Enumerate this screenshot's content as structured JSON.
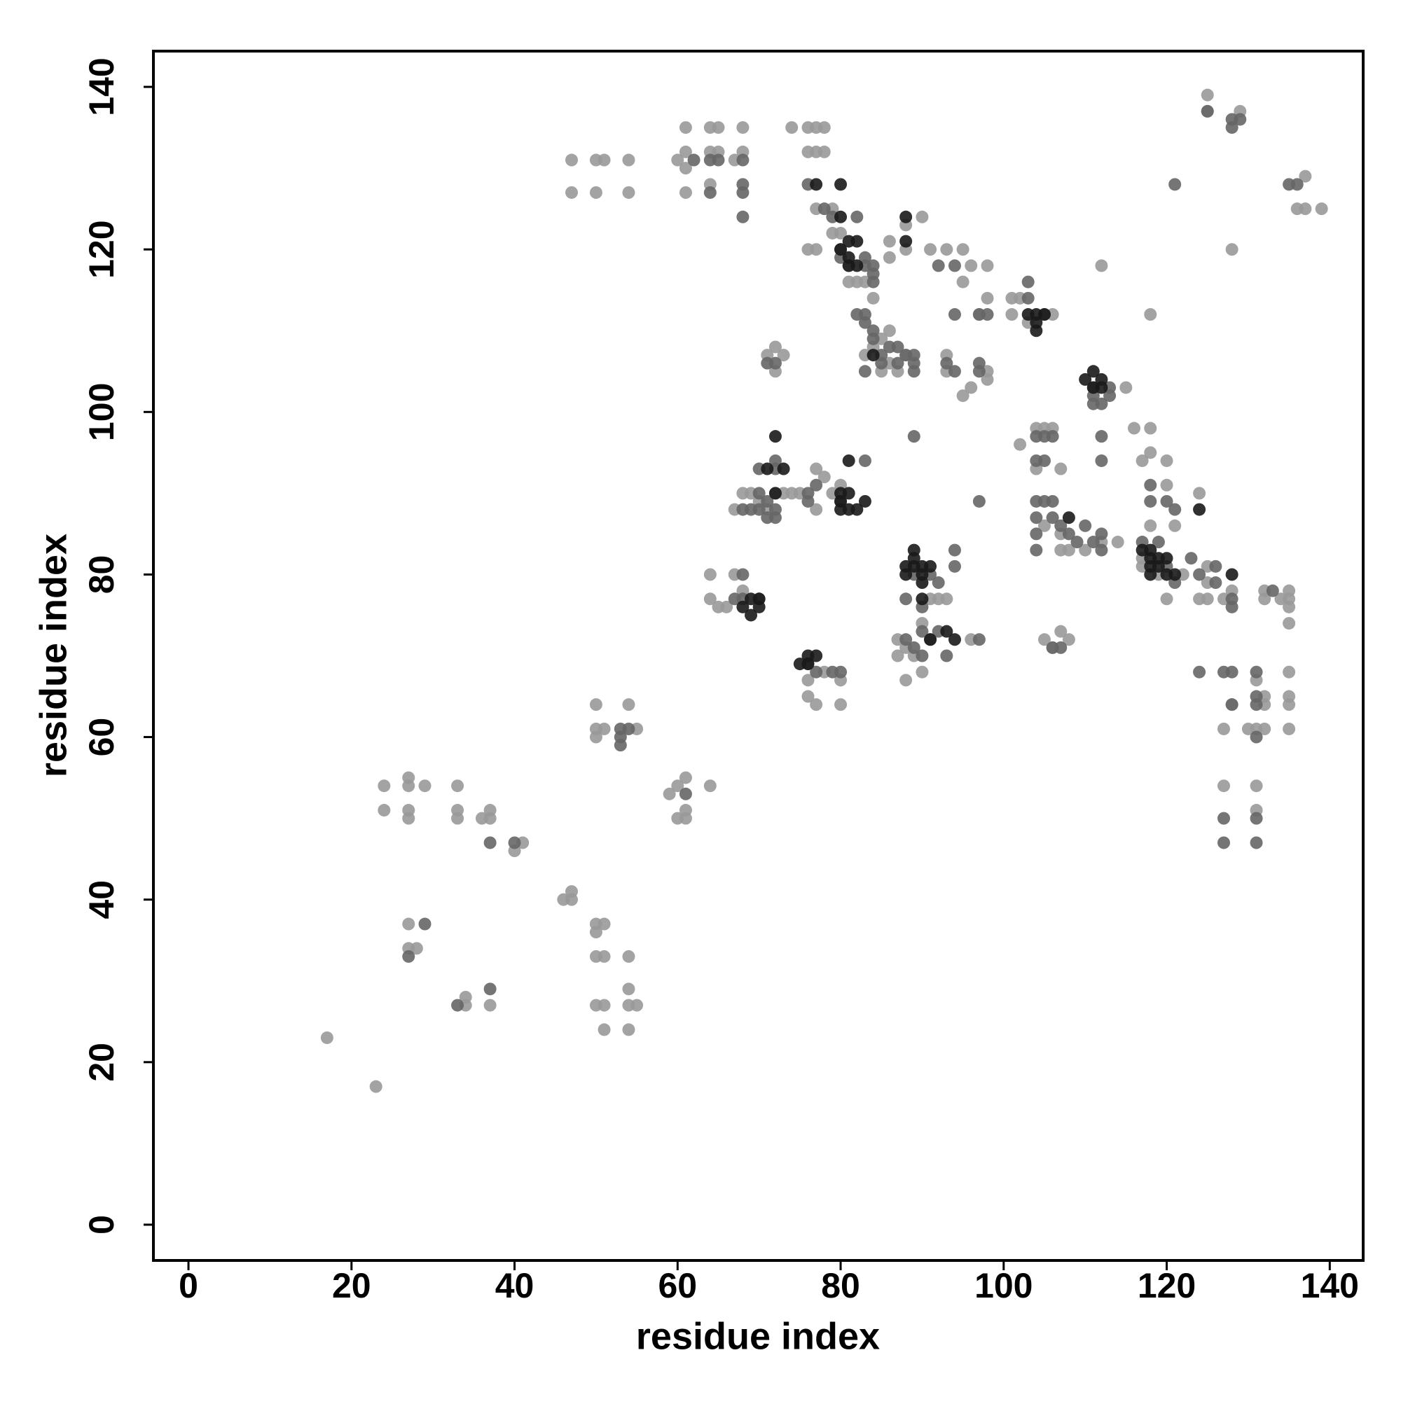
{
  "chart_data": {
    "type": "scatter",
    "x_label": "residue index",
    "y_label": "residue index",
    "xlim": [
      -4.3,
      144.1
    ],
    "ylim": [
      -4.4,
      144.4
    ],
    "xticks": [
      0,
      20,
      40,
      60,
      80,
      100,
      120,
      140
    ],
    "yticks": [
      0,
      20,
      40,
      60,
      80,
      100,
      120,
      140
    ],
    "series": [
      {
        "color": "#999999",
        "x": [
          17,
          23,
          24,
          24,
          27,
          27,
          27,
          27,
          29,
          27,
          27,
          28,
          33,
          33,
          33,
          36,
          37,
          37,
          34,
          34,
          37,
          40,
          41,
          46,
          47,
          47,
          50,
          51,
          50,
          50,
          51,
          50,
          51,
          51,
          54,
          54,
          54,
          55,
          54,
          50,
          50,
          51,
          50,
          54,
          55,
          47,
          50,
          51,
          54,
          47,
          50,
          54,
          59,
          60,
          61,
          60,
          61,
          61,
          64,
          61,
          64,
          65,
          68,
          60,
          61,
          61,
          64,
          65,
          61,
          64,
          67,
          68,
          74,
          76,
          77,
          78,
          76,
          77,
          78,
          77,
          79,
          76,
          77,
          79,
          80,
          81,
          81,
          82,
          83,
          84,
          86,
          86,
          88,
          88,
          90,
          91,
          93,
          95,
          95,
          96,
          98,
          98,
          97,
          101,
          102,
          101,
          103,
          106,
          83,
          84,
          85,
          85,
          86,
          86,
          87,
          88,
          93,
          93,
          95,
          96,
          98,
          98,
          71,
          72,
          73,
          72,
          64,
          64,
          65,
          66,
          67,
          68,
          67,
          68,
          69,
          70,
          71,
          72,
          73,
          74,
          75,
          77,
          78,
          79,
          80,
          77,
          76,
          76,
          77,
          80,
          80,
          78,
          87,
          87,
          88,
          88,
          89,
          90,
          91,
          92,
          93,
          90,
          96,
          102,
          104,
          105,
          106,
          104,
          107,
          105,
          107,
          107,
          108,
          110,
          112,
          114,
          115,
          116,
          117,
          117,
          117,
          119,
          118,
          118,
          120,
          120,
          118,
          121,
          120,
          122,
          124,
          125,
          125,
          124,
          125,
          112,
          118,
          125,
          125,
          129,
          128,
          137,
          136,
          137,
          139,
          127,
          128,
          127,
          130,
          131,
          131,
          132,
          132,
          132,
          131,
          131,
          135,
          135,
          135,
          135,
          135,
          135,
          135,
          135,
          132,
          132,
          127,
          128,
          105,
          106,
          107,
          108,
          134
        ],
        "y": [
          23,
          17,
          54,
          51,
          55,
          54,
          51,
          50,
          54,
          37,
          34,
          34,
          54,
          51,
          50,
          50,
          51,
          50,
          28,
          27,
          27,
          46,
          47,
          40,
          41,
          40,
          37,
          37,
          36,
          33,
          33,
          27,
          27,
          24,
          33,
          29,
          27,
          27,
          24,
          64,
          61,
          61,
          60,
          64,
          61,
          131,
          131,
          131,
          131,
          127,
          127,
          127,
          53,
          54,
          55,
          50,
          51,
          50,
          54,
          135,
          135,
          135,
          135,
          131,
          132,
          130,
          132,
          132,
          127,
          128,
          131,
          132,
          135,
          135,
          135,
          135,
          132,
          132,
          132,
          125,
          125,
          120,
          120,
          122,
          122,
          118,
          116,
          116,
          116,
          114,
          121,
          119,
          123,
          120,
          124,
          120,
          120,
          120,
          116,
          118,
          118,
          114,
          112,
          114,
          114,
          112,
          111,
          112,
          107,
          108,
          109,
          105,
          106,
          110,
          105,
          107,
          107,
          105,
          102,
          103,
          105,
          104,
          107,
          108,
          107,
          105,
          80,
          77,
          76,
          76,
          80,
          78,
          88,
          90,
          90,
          89,
          88,
          90,
          90,
          90,
          90,
          93,
          92,
          90,
          91,
          88,
          67,
          65,
          64,
          67,
          64,
          68,
          72,
          70,
          67,
          71,
          70,
          68,
          77,
          77,
          77,
          74,
          72,
          96,
          98,
          98,
          98,
          93,
          93,
          86,
          85,
          83,
          83,
          83,
          84,
          84,
          103,
          98,
          94,
          81,
          82,
          80,
          98,
          95,
          94,
          91,
          86,
          86,
          77,
          80,
          90,
          81,
          79,
          77,
          77,
          118,
          112,
          139,
          137,
          137,
          120,
          129,
          125,
          125,
          125,
          61,
          64,
          54,
          61,
          67,
          61,
          64,
          65,
          61,
          54,
          51,
          78,
          77,
          76,
          74,
          68,
          65,
          64,
          61,
          78,
          77,
          77,
          78,
          72,
          71,
          73,
          72,
          77
        ]
      },
      {
        "color": "#666666",
        "x": [
          29,
          27,
          33,
          37,
          37,
          40,
          53,
          53,
          54,
          53,
          62,
          64,
          65,
          68,
          68,
          68,
          68,
          64,
          61,
          76,
          78,
          79,
          80,
          80,
          82,
          83,
          83,
          84,
          84,
          84,
          82,
          83,
          83,
          84,
          84,
          85,
          86,
          87,
          88,
          89,
          89,
          85,
          83,
          87,
          89,
          93,
          94,
          94,
          94,
          97,
          97,
          97,
          98,
          92,
          103,
          103,
          105,
          71,
          72,
          72,
          72,
          70,
          71,
          72,
          70,
          70,
          71,
          72,
          68,
          69,
          68,
          68,
          67,
          70,
          76,
          76,
          77,
          80,
          83,
          76,
          77,
          79,
          80,
          89,
          88,
          90,
          90,
          91,
          93,
          94,
          94,
          91,
          92,
          89,
          88,
          92,
          90,
          89,
          97,
          97,
          104,
          105,
          106,
          104,
          105,
          104,
          105,
          106,
          104,
          104,
          104,
          106,
          107,
          108,
          109,
          110,
          111,
          112,
          112,
          111,
          111,
          112,
          111,
          113,
          113,
          112,
          112,
          106,
          107,
          117,
          119,
          121,
          120,
          120,
          121,
          126,
          126,
          123,
          124,
          118,
          118,
          124,
          127,
          128,
          128,
          127,
          127,
          131,
          131,
          131,
          131,
          131,
          131,
          128,
          128,
          121,
          125,
          128,
          128,
          129,
          135,
          136,
          133
        ],
        "y": [
          37,
          33,
          27,
          29,
          47,
          47,
          60,
          59,
          61,
          61,
          131,
          131,
          131,
          131,
          128,
          127,
          124,
          127,
          53,
          128,
          125,
          124,
          120,
          119,
          124,
          119,
          118,
          118,
          117,
          116,
          112,
          112,
          111,
          110,
          109,
          107,
          108,
          108,
          107,
          107,
          106,
          106,
          105,
          106,
          105,
          106,
          105,
          118,
          112,
          106,
          105,
          112,
          112,
          118,
          116,
          114,
          112,
          106,
          106,
          94,
          93,
          93,
          89,
          88,
          90,
          88,
          87,
          87,
          88,
          88,
          80,
          77,
          77,
          77,
          90,
          89,
          91,
          89,
          94,
          69,
          68,
          68,
          68,
          80,
          77,
          76,
          73,
          72,
          70,
          81,
          83,
          80,
          79,
          71,
          72,
          73,
          70,
          97,
          89,
          72,
          97,
          97,
          97,
          94,
          94,
          89,
          89,
          89,
          87,
          85,
          83,
          87,
          86,
          85,
          84,
          86,
          84,
          85,
          83,
          103,
          102,
          101,
          101,
          103,
          102,
          97,
          94,
          71,
          71,
          84,
          84,
          88,
          89,
          81,
          79,
          81,
          79,
          82,
          80,
          89,
          91,
          68,
          68,
          68,
          64,
          50,
          47,
          68,
          65,
          64,
          60,
          50,
          47,
          76,
          77,
          128,
          137,
          135,
          136,
          136,
          128,
          128,
          78
        ]
      },
      {
        "color": "#1a1a1a",
        "x": [
          81,
          80,
          81,
          82,
          82,
          81,
          80,
          80,
          77,
          84,
          103,
          104,
          104,
          104,
          105,
          110,
          111,
          112,
          111,
          112,
          71,
          72,
          73,
          72,
          80,
          81,
          80,
          81,
          82,
          83,
          80,
          81,
          69,
          70,
          70,
          69,
          68,
          76,
          77,
          76,
          75,
          89,
          89,
          88,
          88,
          90,
          91,
          90,
          90,
          90,
          91,
          93,
          94,
          89,
          117,
          118,
          118,
          119,
          118,
          119,
          120,
          120,
          121,
          118,
          124,
          128,
          108,
          88,
          88
        ],
        "y": [
          121,
          120,
          119,
          121,
          118,
          118,
          124,
          128,
          128,
          107,
          112,
          111,
          112,
          110,
          112,
          104,
          105,
          104,
          103,
          103,
          93,
          97,
          93,
          90,
          90,
          90,
          89,
          88,
          88,
          89,
          88,
          94,
          77,
          77,
          76,
          75,
          76,
          69,
          70,
          70,
          69,
          82,
          83,
          81,
          80,
          81,
          81,
          80,
          77,
          79,
          72,
          73,
          72,
          81,
          83,
          83,
          82,
          82,
          81,
          81,
          80,
          82,
          80,
          80,
          88,
          80,
          87,
          124,
          121
        ]
      }
    ]
  }
}
